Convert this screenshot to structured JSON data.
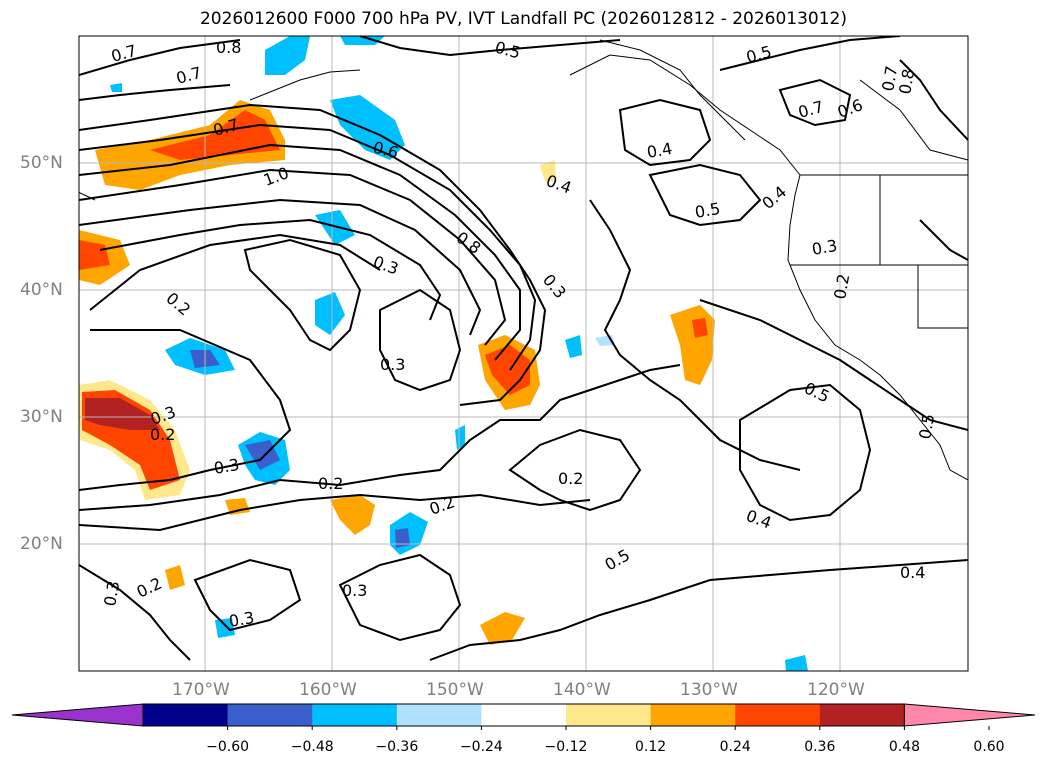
{
  "title": "2026012600 F000 700 hPa PV, IVT Landfall PC (2026012812 - 2026013012)",
  "map": {
    "extent_lon": [
      -180,
      -110
    ],
    "extent_lat": [
      10,
      60
    ],
    "lat_labels": [
      "50°N",
      "40°N",
      "30°N",
      "20°N"
    ],
    "lon_labels": [
      "170°W",
      "160°W",
      "150°W",
      "140°W",
      "130°W",
      "120°W"
    ],
    "contour_labels": [
      "0.7",
      "0.8",
      "0.7",
      "0.7",
      "1.0",
      "0.5",
      "0.6",
      "0.4",
      "0.8",
      "0.3",
      "0.2",
      "0.3",
      "0.3",
      "0.2",
      "0.3",
      "0.2",
      "0.3",
      "0.3",
      "0.2",
      "0.3",
      "0.3",
      "0.2",
      "0.5",
      "0.4",
      "0.5",
      "0.5",
      "0.7",
      "0.6",
      "0.7",
      "0.8",
      "0.4",
      "0.3",
      "0.2",
      "0.5",
      "0.4",
      "0.5",
      "0.4",
      "0.2"
    ]
  },
  "colorbar": {
    "ticks": [
      "−0.60",
      "−0.48",
      "−0.36",
      "−0.24",
      "−0.12",
      "0.12",
      "0.24",
      "0.36",
      "0.48",
      "0.60"
    ],
    "colors": [
      "#9933cc",
      "#00008b",
      "#3a5fcd",
      "#00bfff",
      "#b0e2ff",
      "#ffffff",
      "#ffe88c",
      "#ffa500",
      "#ff4500",
      "#b22222",
      "#ff88aa"
    ]
  }
}
